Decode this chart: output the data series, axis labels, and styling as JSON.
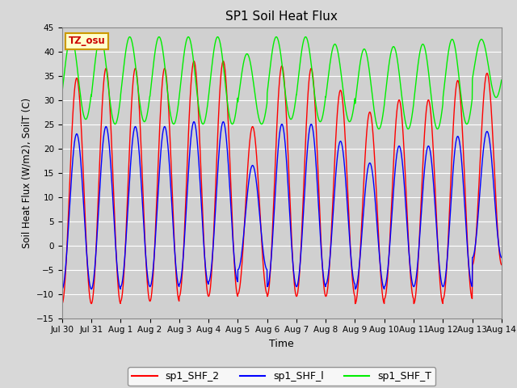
{
  "title": "SP1 Soil Heat Flux",
  "xlabel": "Time",
  "ylabel": "Soil Heat Flux (W/m2), SoilT (C)",
  "ylim": [
    -15,
    45
  ],
  "yticks": [
    -15,
    -10,
    -5,
    0,
    5,
    10,
    15,
    20,
    25,
    30,
    35,
    40,
    45
  ],
  "xtick_labels": [
    "Jul 30",
    "Jul 31",
    "Aug 1",
    "Aug 2",
    "Aug 3",
    "Aug 4",
    "Aug 5",
    "Aug 6",
    "Aug 7",
    "Aug 8",
    "Aug 9",
    "Aug 10",
    "Aug 11",
    "Aug 12",
    "Aug 13",
    "Aug 14"
  ],
  "legend_label_1": "sp1_SHF_2",
  "legend_label_2": "sp1_SHF_l",
  "legend_label_3": "sp1_SHF_T",
  "color_1": "#ff0000",
  "color_2": "#0000ff",
  "color_3": "#00ee00",
  "tz_label": "TZ_osu",
  "tz_bg": "#ffffcc",
  "tz_border": "#cc9900",
  "tz_text_color": "#cc0000",
  "n_days": 15,
  "samples_per_day": 144,
  "shf2_maxes": [
    34.5,
    36.5,
    36.5,
    36.5,
    38.0,
    38.0,
    24.5,
    37.0,
    36.5,
    32.0,
    27.5,
    30.0,
    30.0,
    34.0,
    35.5
  ],
  "shf2_mins": [
    -12,
    -12,
    -11.5,
    -11.5,
    -10.5,
    -10.5,
    -10.0,
    -10.5,
    -10.5,
    -10.5,
    -12,
    -11,
    -12,
    -11,
    -4
  ],
  "shfl_maxes": [
    23,
    24.5,
    24.5,
    24.5,
    25.5,
    25.5,
    16.5,
    25.0,
    25.0,
    21.5,
    17.0,
    20.5,
    20.5,
    22.5,
    23.5
  ],
  "shfl_mins": [
    -9,
    -9,
    -8.5,
    -8.5,
    -8.0,
    -7.5,
    -5.0,
    -8.5,
    -8.5,
    -8.0,
    -9.0,
    -8.5,
    -8.5,
    -8.5,
    -2.5
  ],
  "shft_maxes": [
    43,
    43,
    43,
    43,
    43,
    43,
    39.5,
    43,
    43,
    41.5,
    40.5,
    41.0,
    41.5,
    42.5,
    42.5
  ],
  "shft_mins": [
    26,
    25,
    25.5,
    25,
    25,
    25,
    25,
    26,
    25.5,
    25.5,
    24,
    24,
    24,
    25,
    30.5
  ],
  "shft_phase_shift": 1.2
}
